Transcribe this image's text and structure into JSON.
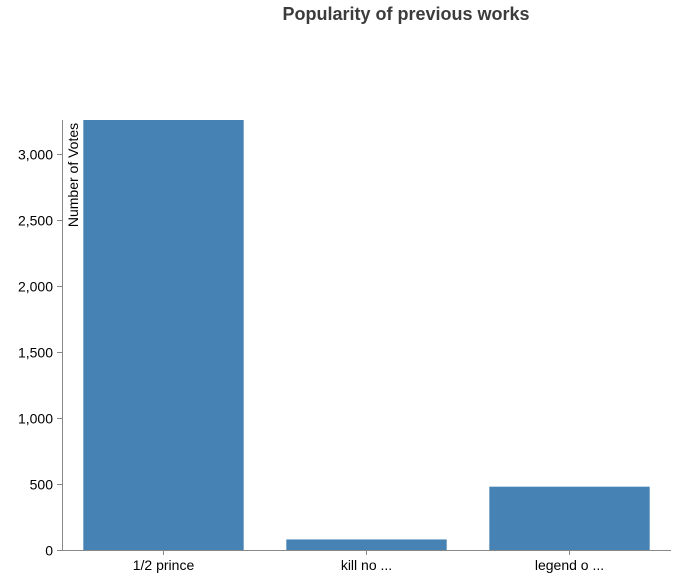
{
  "chart_data": {
    "type": "bar",
    "title": "Popularity of previous works",
    "xlabel": "",
    "ylabel": "Number of Votes",
    "categories": [
      "1/2 prince",
      "kill no ...",
      "legend o ..."
    ],
    "values": [
      3260,
      80,
      480
    ],
    "ylim": [
      0,
      3260
    ],
    "yticks": [
      0,
      500,
      1000,
      1500,
      2000,
      2500,
      3000
    ],
    "ytick_labels": [
      "0",
      "500",
      "1,000",
      "1,500",
      "2,000",
      "2,500",
      "3,000"
    ],
    "bar_color": "#4682b4",
    "grid": false,
    "legend": "none"
  }
}
